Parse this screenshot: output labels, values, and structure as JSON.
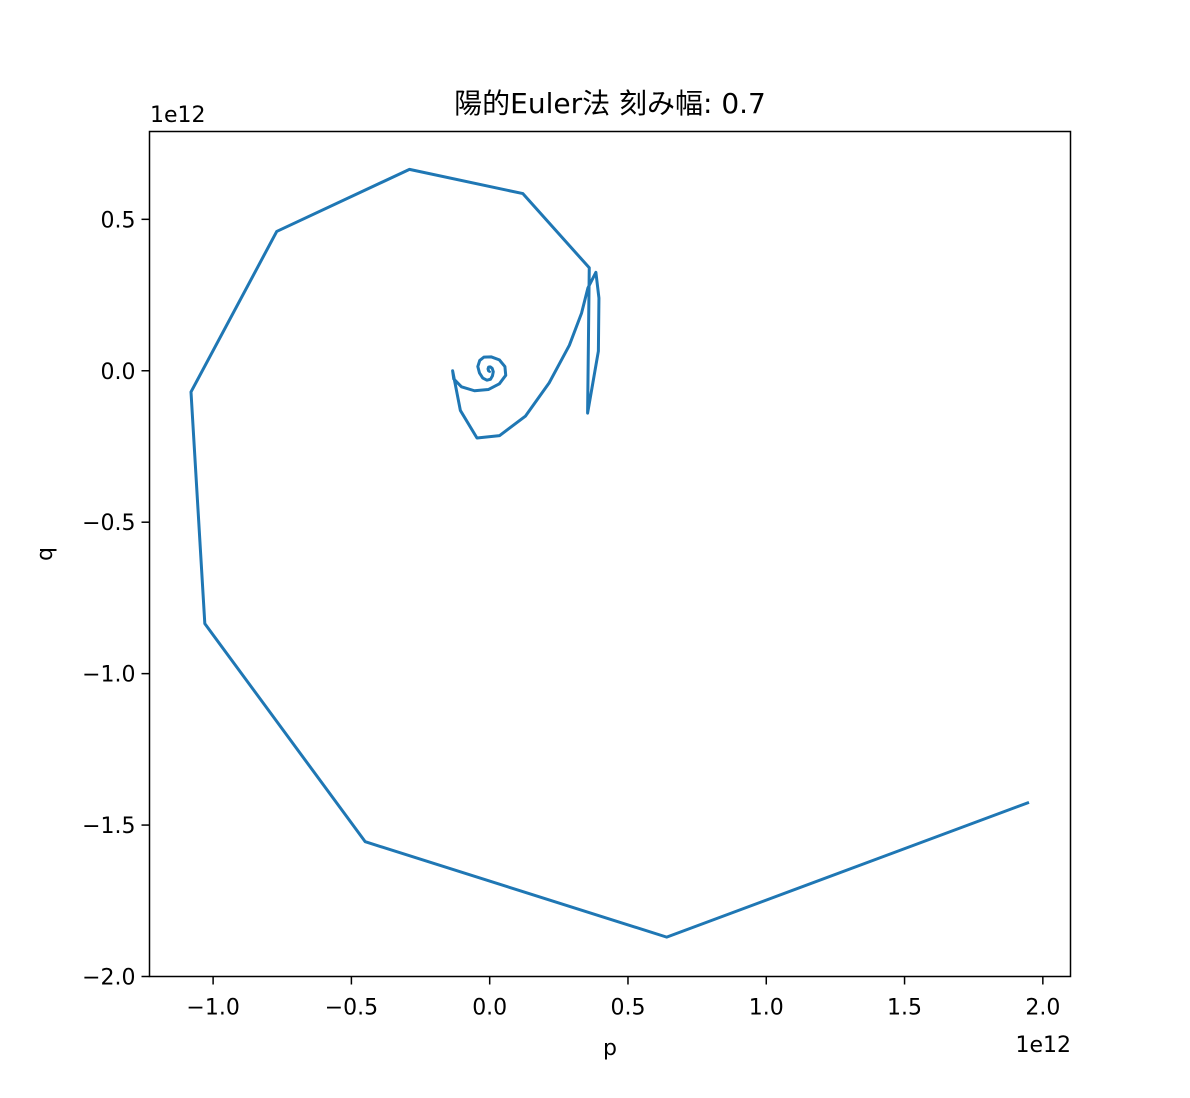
{
  "chart_data": {
    "type": "line",
    "title": "陽的Euler法 刻み幅: 0.7",
    "xlabel": "p",
    "ylabel": "q",
    "x_offset_text": "1e12",
    "y_offset_text": "1e12",
    "xlim": [
      -1.23,
      2.1
    ],
    "ylim": [
      -2.0,
      0.79
    ],
    "x_ticks": [
      -1.0,
      -0.5,
      0.0,
      0.5,
      1.0,
      1.5,
      2.0
    ],
    "x_tick_labels": [
      "−1.0",
      "−0.5",
      "0.0",
      "0.5",
      "1.0",
      "1.5",
      "2.0"
    ],
    "y_ticks": [
      -2.0,
      -1.5,
      -1.0,
      -0.5,
      0.0,
      0.5
    ],
    "y_tick_labels": [
      "−2.0",
      "−1.5",
      "−1.0",
      "−0.5",
      "0.0",
      "0.5"
    ],
    "grid": false,
    "color": "#1f77b4",
    "series": [
      {
        "x": [
          0.001,
          0.0,
          -0.004,
          -0.006,
          -0.004,
          0.002,
          0.009,
          0.013,
          0.01,
          0.003,
          -0.01,
          -0.025,
          -0.037,
          -0.043,
          -0.036,
          -0.021,
          0.005,
          0.035,
          0.055,
          0.058,
          0.035,
          -0.005,
          -0.055,
          -0.102,
          -0.13,
          -0.134,
          -0.106,
          -0.046,
          0.036,
          0.129,
          0.215,
          0.288,
          0.332,
          0.355,
          0.384,
          0.395,
          0.393,
          0.354,
          0.36,
          0.12,
          -0.29,
          -0.77,
          -1.08,
          -1.03,
          -0.45,
          0.64,
          1.95
        ],
        "y": [
          0.0,
          -0.002,
          0.0,
          0.006,
          0.012,
          0.013,
          0.008,
          -0.003,
          -0.017,
          -0.028,
          -0.031,
          -0.024,
          -0.007,
          0.014,
          0.034,
          0.045,
          0.046,
          0.036,
          0.014,
          -0.015,
          -0.043,
          -0.062,
          -0.066,
          -0.053,
          -0.027,
          0.0,
          -0.131,
          -0.222,
          -0.214,
          -0.15,
          -0.04,
          0.084,
          0.19,
          0.273,
          0.325,
          0.24,
          0.065,
          -0.14,
          0.34,
          0.585,
          0.665,
          0.46,
          -0.07,
          -0.835,
          -1.555,
          -1.87,
          -1.425
        ]
      }
    ]
  }
}
